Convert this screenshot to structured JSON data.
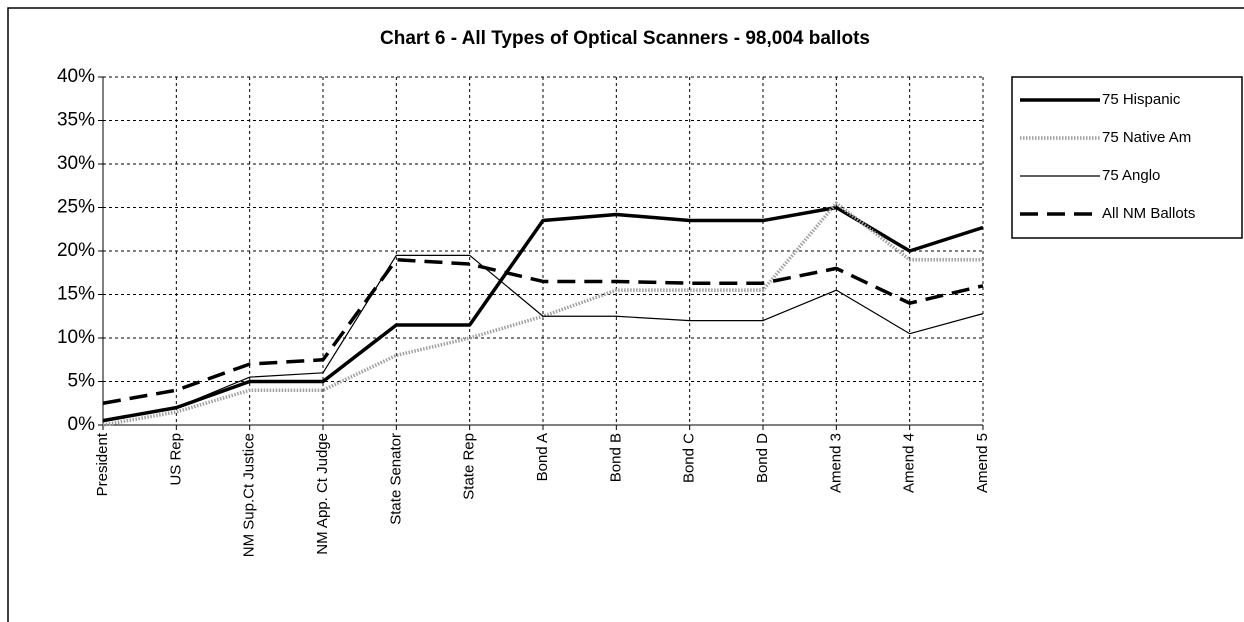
{
  "chart_data": {
    "type": "line",
    "title": "Chart 6 - All Types of Optical Scanners - 98,004 ballots",
    "categories": [
      "President",
      "US Rep",
      "NM Sup.Ct Justice",
      "NM App. Ct Judge",
      "State Senator",
      "State Rep",
      "Bond A",
      "Bond B",
      "Bond C",
      "Bond D",
      "Amend 3",
      "Amend 4",
      "Amend 5"
    ],
    "series": [
      {
        "name": "75 Hispanic",
        "color": "#000000",
        "values": [
          0.5,
          2,
          5,
          5,
          11.5,
          11.5,
          23.5,
          24.2,
          23.5,
          23.5,
          25,
          20,
          22.7
        ]
      },
      {
        "name": "75 Native Am",
        "color": "#a0a0a0",
        "values": [
          0,
          1.5,
          4,
          4,
          8,
          10,
          12.5,
          15.5,
          15.5,
          15.5,
          25.5,
          19,
          19
        ]
      },
      {
        "name": "75 Anglo",
        "color": "#000000",
        "values": [
          0.5,
          2,
          5.5,
          6,
          19.5,
          19.5,
          12.5,
          12.5,
          12,
          12,
          15.5,
          10.5,
          12.8
        ]
      },
      {
        "name": "All NM Ballots",
        "color": "#000000",
        "values": [
          2.5,
          4,
          7,
          7.5,
          19,
          18.5,
          16.5,
          16.5,
          16.3,
          16.3,
          18,
          14,
          16
        ]
      }
    ],
    "ylim": [
      0,
      40
    ],
    "yticks": [
      {
        "value": 0,
        "label": "0%"
      },
      {
        "value": 5,
        "label": "5%"
      },
      {
        "value": 10,
        "label": "10%"
      },
      {
        "value": 15,
        "label": "15%"
      },
      {
        "value": 20,
        "label": "20%"
      },
      {
        "value": 25,
        "label": "25%"
      },
      {
        "value": 30,
        "label": "30%"
      },
      {
        "value": 35,
        "label": "35%"
      },
      {
        "value": 40,
        "label": "40%"
      }
    ],
    "grid": true,
    "legend": "right"
  }
}
